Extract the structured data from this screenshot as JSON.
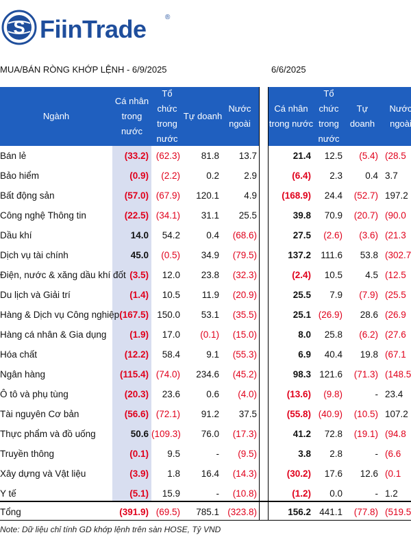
{
  "brand": {
    "name": "FiinTrade",
    "reg": "®"
  },
  "title_left": "MUA/BÁN RÒNG KHỚP LỆNH - 6/9/2025",
  "title_right": "6/6/2025",
  "headers_left": {
    "nganh": "Ngành",
    "canhan": "Cá nhân trong nước",
    "tochuc": "Tổ chức trong nước",
    "tudoanh": "Tự doanh",
    "nuocngoai": "Nước ngoài"
  },
  "headers_right": {
    "canhan": "Cá nhân trong nước",
    "tochuc": "Tổ chức trong nước",
    "tudoanh": "Tự doanh",
    "nuocngoai": "Nước ngoài"
  },
  "rows": [
    {
      "name": "Bán lẻ",
      "l": [
        "(33.2)",
        "(62.3)",
        "81.8",
        "13.7"
      ],
      "r": [
        "21.4",
        "12.5",
        "(5.4)",
        "(28.5"
      ]
    },
    {
      "name": "Bảo hiểm",
      "l": [
        "(0.9)",
        "(2.2)",
        "0.2",
        "2.9"
      ],
      "r": [
        "(6.4)",
        "2.3",
        "0.4",
        "3.7"
      ]
    },
    {
      "name": "Bất động sản",
      "l": [
        "(57.0)",
        "(67.9)",
        "120.1",
        "4.9"
      ],
      "r": [
        "(168.9)",
        "24.4",
        "(52.7)",
        "197.2"
      ]
    },
    {
      "name": "Công nghệ Thông tin",
      "l": [
        "(22.5)",
        "(34.1)",
        "31.1",
        "25.5"
      ],
      "r": [
        "39.8",
        "70.9",
        "(20.7)",
        "(90.0"
      ]
    },
    {
      "name": "Dầu khí",
      "l": [
        "14.0",
        "54.2",
        "0.4",
        "(68.6)"
      ],
      "r": [
        "27.5",
        "(2.6)",
        "(3.6)",
        "(21.3"
      ]
    },
    {
      "name": "Dịch vụ tài chính",
      "l": [
        "45.0",
        "(0.5)",
        "34.9",
        "(79.5)"
      ],
      "r": [
        "137.2",
        "111.6",
        "53.8",
        "(302.7"
      ]
    },
    {
      "name": "Điện, nước & xăng dầu khí đốt",
      "l": [
        "(3.5)",
        "12.0",
        "23.8",
        "(32.3)"
      ],
      "r": [
        "(2.4)",
        "10.5",
        "4.5",
        "(12.5"
      ]
    },
    {
      "name": "Du lịch và Giải trí",
      "l": [
        "(1.4)",
        "10.5",
        "11.9",
        "(20.9)"
      ],
      "r": [
        "25.5",
        "7.9",
        "(7.9)",
        "(25.5"
      ]
    },
    {
      "name": "Hàng & Dịch vụ Công nghiệp",
      "l": [
        "(167.5)",
        "150.0",
        "53.1",
        "(35.5)"
      ],
      "r": [
        "25.1",
        "(26.9)",
        "28.6",
        "(26.9"
      ]
    },
    {
      "name": "Hàng cá nhân & Gia dụng",
      "l": [
        "(1.9)",
        "17.0",
        "(0.1)",
        "(15.0)"
      ],
      "r": [
        "8.0",
        "25.8",
        "(6.2)",
        "(27.6"
      ]
    },
    {
      "name": "Hóa chất",
      "l": [
        "(12.2)",
        "58.4",
        "9.1",
        "(55.3)"
      ],
      "r": [
        "6.9",
        "40.4",
        "19.8",
        "(67.1"
      ]
    },
    {
      "name": "Ngân hàng",
      "l": [
        "(115.4)",
        "(74.0)",
        "234.6",
        "(45.2)"
      ],
      "r": [
        "98.3",
        "121.6",
        "(71.3)",
        "(148.5"
      ]
    },
    {
      "name": "Ô tô và phụ tùng",
      "l": [
        "(20.3)",
        "23.6",
        "0.6",
        "(4.0)"
      ],
      "r": [
        "(13.6)",
        "(9.8)",
        "-",
        "23.4"
      ]
    },
    {
      "name": "Tài nguyên Cơ bản",
      "l": [
        "(56.6)",
        "(72.1)",
        "91.2",
        "37.5"
      ],
      "r": [
        "(55.8)",
        "(40.9)",
        "(10.5)",
        "107.2"
      ]
    },
    {
      "name": "Thực phẩm và đồ uống",
      "l": [
        "50.6",
        "(109.3)",
        "76.0",
        "(17.3)"
      ],
      "r": [
        "41.2",
        "72.8",
        "(19.1)",
        "(94.8"
      ]
    },
    {
      "name": "Truyền thông",
      "l": [
        "(0.1)",
        "9.5",
        "-",
        "(9.5)"
      ],
      "r": [
        "3.8",
        "2.8",
        "-",
        "(6.6"
      ]
    },
    {
      "name": "Xây dựng và Vật liệu",
      "l": [
        "(3.9)",
        "1.8",
        "16.4",
        "(14.3)"
      ],
      "r": [
        "(30.2)",
        "17.6",
        "12.6",
        "(0.1"
      ]
    },
    {
      "name": "Y tế",
      "l": [
        "(5.1)",
        "15.9",
        "-",
        "(10.8)"
      ],
      "r": [
        "(1.2)",
        "0.0",
        "-",
        "1.2"
      ]
    }
  ],
  "total": {
    "name": "Tổng",
    "l": [
      "(391.9)",
      "(69.5)",
      "785.1",
      "(323.8)"
    ],
    "r": [
      "156.2",
      "441.1",
      "(77.8)",
      "(519.5"
    ]
  },
  "note": "Note: Dữ liệu chỉ tính GD khớp lệnh trên sàn HOSE, Tỷ VND"
}
